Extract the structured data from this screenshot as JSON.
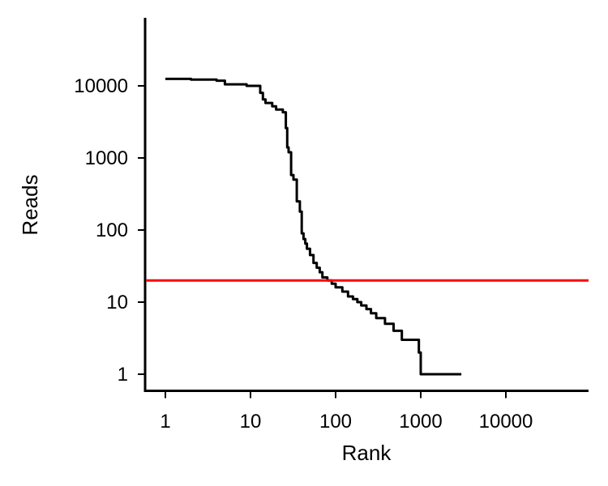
{
  "chart_data": {
    "type": "line",
    "title": "",
    "xlabel": "Rank",
    "ylabel": "Reads",
    "x_scale": "log",
    "y_scale": "log",
    "xlim": [
      0.78,
      80000
    ],
    "ylim": [
      0.6,
      80000
    ],
    "x_ticks": [
      {
        "value": 1,
        "label": "1"
      },
      {
        "value": 10,
        "label": "10"
      },
      {
        "value": 100,
        "label": "100"
      },
      {
        "value": 1000,
        "label": "1000"
      },
      {
        "value": 10000,
        "label": "10000"
      }
    ],
    "y_ticks": [
      {
        "value": 1,
        "label": "1"
      },
      {
        "value": 10,
        "label": "10"
      },
      {
        "value": 100,
        "label": "100"
      },
      {
        "value": 1000,
        "label": "1000"
      },
      {
        "value": 10000,
        "label": "10000"
      }
    ],
    "grid": false,
    "series": [
      {
        "color": "#000000",
        "x": [
          1,
          2,
          4,
          5,
          9,
          13,
          14,
          15,
          18,
          20,
          24,
          26,
          27,
          28,
          30,
          32,
          35,
          38,
          40,
          42,
          44,
          46,
          50,
          55,
          60,
          65,
          70,
          80,
          90,
          100,
          120,
          140,
          160,
          180,
          200,
          230,
          260,
          300,
          380,
          480,
          600,
          950,
          1000,
          3000
        ],
        "y": [
          12500,
          12200,
          11800,
          10500,
          10000,
          8000,
          6500,
          5800,
          5200,
          4700,
          4300,
          2600,
          1400,
          1200,
          580,
          500,
          250,
          180,
          90,
          75,
          65,
          55,
          45,
          35,
          30,
          26,
          22,
          20,
          18,
          16,
          14,
          12,
          11,
          10,
          9,
          8,
          7,
          6,
          5,
          4,
          3,
          2,
          1,
          1
        ],
        "step": true
      },
      {
        "color": "#ff0000",
        "type": "hline",
        "y": 20
      }
    ]
  }
}
